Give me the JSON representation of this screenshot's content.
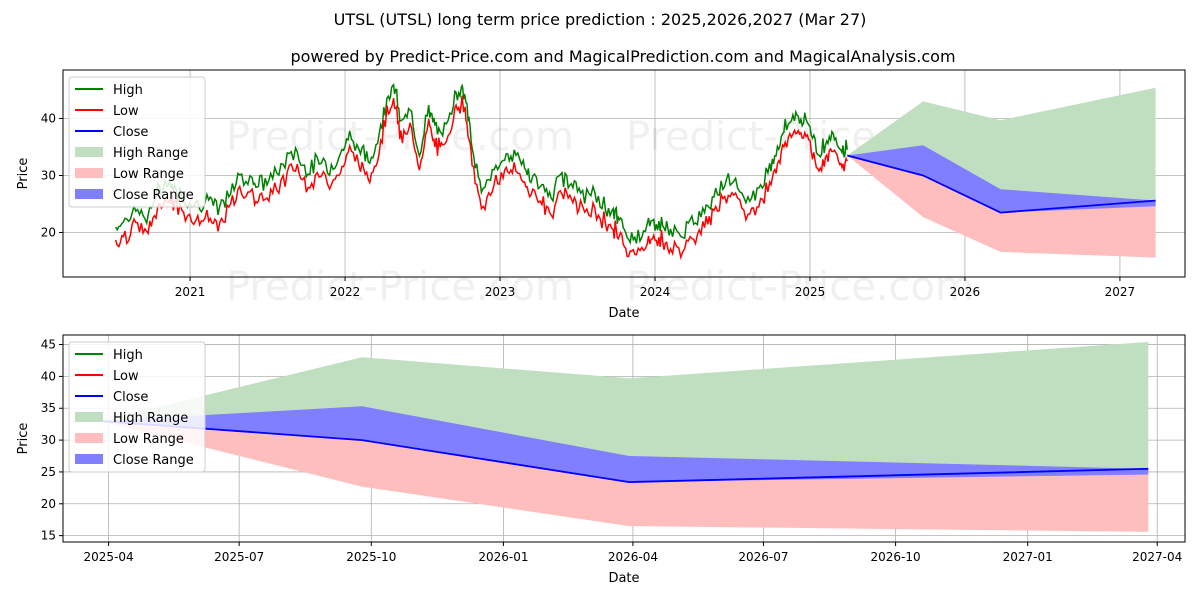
{
  "title": "UTSL (UTSL) long term price prediction : 2025,2026,2027 (Mar 27)",
  "subtitle": "powered by Predict-Price.com and MagicalPrediction.com and MagicalAnalysis.com",
  "watermark": "Predict-Price.com",
  "colors": {
    "high": "#008000",
    "low": "#ff0000",
    "close": "#0000ff",
    "high_range": "#c0dfc0",
    "low_range": "#ffbebe",
    "close_range": "#7f7fff",
    "grid": "#b0b0b0"
  },
  "legend": {
    "placement": "top-left",
    "items": [
      {
        "label": "High",
        "kind": "line",
        "color_key": "high"
      },
      {
        "label": "Low",
        "kind": "line",
        "color_key": "low"
      },
      {
        "label": "Close",
        "kind": "line",
        "color_key": "close"
      },
      {
        "label": "High Range",
        "kind": "patch",
        "color_key": "high_range"
      },
      {
        "label": "Low Range",
        "kind": "patch",
        "color_key": "low_range"
      },
      {
        "label": "Close Range",
        "kind": "patch",
        "color_key": "close_range"
      }
    ]
  },
  "chart_data": [
    {
      "type": "line",
      "xlabel": "Date",
      "ylabel": "Price",
      "grid": true,
      "xlim": [
        2020.18,
        2027.42
      ],
      "ylim": [
        12.2,
        48.5
      ],
      "x_ticks": [
        {
          "label": "2021",
          "value": 2021.0
        },
        {
          "label": "2022",
          "value": 2022.0
        },
        {
          "label": "2023",
          "value": 2023.0
        },
        {
          "label": "2024",
          "value": 2024.0
        },
        {
          "label": "2025",
          "value": 2025.0
        },
        {
          "label": "2026",
          "value": 2026.0
        },
        {
          "label": "2027",
          "value": 2027.0
        }
      ],
      "y_ticks": [
        20,
        30,
        40
      ],
      "history": {
        "x": [
          2020.52,
          2020.58,
          2020.65,
          2020.72,
          2020.78,
          2020.85,
          2020.9,
          2020.97,
          2021.05,
          2021.12,
          2021.18,
          2021.25,
          2021.32,
          2021.4,
          2021.45,
          2021.52,
          2021.6,
          2021.68,
          2021.75,
          2021.82,
          2021.9,
          2021.97,
          2022.03,
          2022.1,
          2022.16,
          2022.22,
          2022.28,
          2022.32,
          2022.36,
          2022.42,
          2022.48,
          2022.54,
          2022.58,
          2022.63,
          2022.7,
          2022.75,
          2022.78,
          2022.82,
          2022.88,
          2022.95,
          2023.02,
          2023.08,
          2023.15,
          2023.2,
          2023.27,
          2023.33,
          2023.4,
          2023.46,
          2023.52,
          2023.6,
          2023.67,
          2023.73,
          2023.77,
          2023.82,
          2023.88,
          2023.95,
          2024.0,
          2024.05,
          2024.1,
          2024.18,
          2024.25,
          2024.32,
          2024.38,
          2024.45,
          2024.52,
          2024.6,
          2024.67,
          2024.74,
          2024.79,
          2024.84,
          2024.9,
          2024.95,
          2025.0,
          2025.05,
          2025.1,
          2025.15,
          2025.2,
          2025.24
        ],
        "close": [
          19.5,
          21.0,
          22.5,
          21.0,
          25.0,
          28.0,
          26.0,
          24.5,
          23.5,
          24.5,
          22.5,
          25.0,
          28.5,
          28.0,
          27.0,
          28.0,
          30.5,
          33.0,
          29.5,
          31.0,
          30.0,
          32.5,
          35.5,
          33.0,
          31.0,
          36.0,
          43.0,
          44.0,
          38.0,
          39.5,
          33.0,
          40.0,
          37.0,
          35.5,
          42.0,
          44.5,
          41.5,
          33.5,
          26.0,
          29.0,
          31.5,
          32.5,
          30.5,
          28.5,
          26.5,
          25.0,
          28.5,
          27.5,
          25.5,
          25.0,
          23.5,
          22.0,
          21.0,
          17.5,
          18.0,
          19.5,
          20.5,
          20.0,
          18.5,
          18.5,
          20.5,
          22.5,
          25.5,
          28.0,
          26.5,
          24.5,
          26.0,
          30.0,
          33.5,
          37.0,
          39.5,
          38.0,
          37.5,
          32.5,
          34.5,
          35.5,
          33.5,
          33.5
        ]
      },
      "forecast": {
        "x": [
          2025.24,
          2025.73,
          2026.23,
          2027.23
        ],
        "close": [
          33.5,
          30.0,
          23.5,
          25.6
        ],
        "high_range_upper": [
          33.5,
          43.0,
          39.7,
          45.4
        ],
        "low_range_lower": [
          33.5,
          22.7,
          16.6,
          15.6
        ],
        "close_range_upper": [
          33.5,
          35.3,
          27.6,
          25.6
        ],
        "close_range_lower": [
          33.5,
          30.0,
          23.5,
          24.6
        ]
      }
    },
    {
      "type": "area",
      "xlabel": "Date",
      "ylabel": "Price",
      "grid": true,
      "xlim": [
        2025.16,
        2027.3
      ],
      "ylim": [
        14.0,
        46.5
      ],
      "x_ticks": [
        {
          "label": "2025-04",
          "value": 2025.247
        },
        {
          "label": "2025-07",
          "value": 2025.496
        },
        {
          "label": "2025-10",
          "value": 2025.748
        },
        {
          "label": "2026-01",
          "value": 2026.0
        },
        {
          "label": "2026-04",
          "value": 2026.247
        },
        {
          "label": "2026-07",
          "value": 2026.496
        },
        {
          "label": "2026-10",
          "value": 2026.748
        },
        {
          "label": "2027-01",
          "value": 2027.0
        },
        {
          "label": "2027-04",
          "value": 2027.247
        }
      ],
      "y_ticks": [
        15,
        20,
        25,
        30,
        35,
        40,
        45
      ],
      "forecast": {
        "x": [
          2025.23,
          2025.73,
          2026.24,
          2027.23
        ],
        "close": [
          33.0,
          30.0,
          23.4,
          25.5
        ],
        "high_range_upper": [
          33.0,
          43.0,
          39.7,
          45.4
        ],
        "low_range_lower": [
          33.0,
          22.7,
          16.5,
          15.6
        ],
        "close_range_upper": [
          33.0,
          35.3,
          27.5,
          25.5
        ],
        "close_range_lower": [
          33.0,
          30.0,
          23.4,
          24.6
        ]
      }
    }
  ]
}
